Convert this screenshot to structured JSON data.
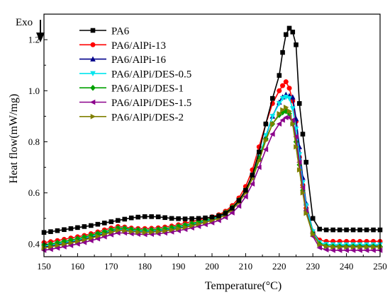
{
  "chart_data": {
    "type": "line",
    "title": "",
    "xlabel": "Temperature(°C)",
    "ylabel": "Heat flow(mW/mg)",
    "annotation": "Exo",
    "xlim": [
      150,
      250
    ],
    "ylim": [
      0.35,
      1.3
    ],
    "xticks": [
      "150",
      "160",
      "170",
      "180",
      "190",
      "200",
      "210",
      "220",
      "230",
      "240",
      "250"
    ],
    "yticks": [
      "0.4",
      "0.6",
      "0.8",
      "1.0",
      "1.2"
    ],
    "grid": false,
    "legend_position": "top-left",
    "x": [
      150,
      152,
      154,
      156,
      158,
      160,
      162,
      164,
      166,
      168,
      170,
      172,
      174,
      176,
      178,
      180,
      182,
      184,
      186,
      188,
      190,
      192,
      194,
      196,
      198,
      200,
      202,
      204,
      206,
      208,
      210,
      212,
      214,
      216,
      218,
      220,
      221,
      222,
      223,
      224,
      225,
      226,
      227,
      228,
      230,
      232,
      234,
      236,
      238,
      240,
      242,
      244,
      246,
      248,
      250
    ],
    "series": [
      {
        "name": "PA6",
        "color": "#000000",
        "marker": "square",
        "values": [
          0.445,
          0.448,
          0.452,
          0.456,
          0.46,
          0.464,
          0.468,
          0.472,
          0.477,
          0.482,
          0.487,
          0.492,
          0.497,
          0.502,
          0.505,
          0.507,
          0.507,
          0.506,
          0.503,
          0.5,
          0.499,
          0.498,
          0.499,
          0.5,
          0.502,
          0.505,
          0.51,
          0.52,
          0.54,
          0.57,
          0.61,
          0.67,
          0.76,
          0.87,
          0.97,
          1.06,
          1.15,
          1.22,
          1.245,
          1.23,
          1.18,
          0.95,
          0.83,
          0.72,
          0.5,
          0.458,
          0.455,
          0.455,
          0.455,
          0.455,
          0.455,
          0.455,
          0.455,
          0.455,
          0.455
        ]
      },
      {
        "name": "PA6/AlPi-13",
        "color": "#ff0000",
        "marker": "circle",
        "values": [
          0.405,
          0.409,
          0.413,
          0.418,
          0.423,
          0.428,
          0.433,
          0.44,
          0.447,
          0.455,
          0.462,
          0.468,
          0.466,
          0.462,
          0.46,
          0.46,
          0.461,
          0.463,
          0.466,
          0.47,
          0.475,
          0.481,
          0.487,
          0.494,
          0.5,
          0.506,
          0.514,
          0.528,
          0.55,
          0.58,
          0.625,
          0.69,
          0.78,
          0.87,
          0.95,
          1.0,
          1.02,
          1.035,
          1.01,
          0.96,
          0.88,
          0.74,
          0.63,
          0.54,
          0.445,
          0.415,
          0.41,
          0.41,
          0.41,
          0.41,
          0.41,
          0.41,
          0.41,
          0.41,
          0.41
        ]
      },
      {
        "name": "PA6/AlPi-16",
        "color": "#00008b",
        "marker": "triangle-up",
        "values": [
          0.388,
          0.392,
          0.397,
          0.402,
          0.407,
          0.413,
          0.42,
          0.427,
          0.434,
          0.442,
          0.45,
          0.457,
          0.456,
          0.452,
          0.45,
          0.449,
          0.45,
          0.452,
          0.455,
          0.459,
          0.464,
          0.469,
          0.475,
          0.482,
          0.489,
          0.496,
          0.505,
          0.518,
          0.538,
          0.565,
          0.605,
          0.66,
          0.735,
          0.82,
          0.9,
          0.955,
          0.975,
          0.985,
          0.98,
          0.975,
          0.89,
          0.78,
          0.66,
          0.56,
          0.45,
          0.405,
          0.398,
          0.396,
          0.395,
          0.395,
          0.395,
          0.395,
          0.395,
          0.395,
          0.395
        ]
      },
      {
        "name": "PA6/AlPi/DES-0.5",
        "color": "#00e5ee",
        "marker": "triangle-down",
        "values": [
          0.392,
          0.396,
          0.401,
          0.406,
          0.411,
          0.417,
          0.423,
          0.43,
          0.437,
          0.445,
          0.452,
          0.459,
          0.458,
          0.454,
          0.452,
          0.451,
          0.452,
          0.454,
          0.457,
          0.461,
          0.466,
          0.471,
          0.477,
          0.484,
          0.491,
          0.498,
          0.507,
          0.52,
          0.54,
          0.568,
          0.608,
          0.665,
          0.74,
          0.825,
          0.9,
          0.95,
          0.97,
          0.975,
          0.97,
          0.93,
          0.85,
          0.75,
          0.64,
          0.55,
          0.448,
          0.405,
          0.398,
          0.397,
          0.397,
          0.397,
          0.397,
          0.397,
          0.397,
          0.397,
          0.397
        ]
      },
      {
        "name": "PA6/AlPi/DES-1",
        "color": "#00a000",
        "marker": "diamond",
        "values": [
          0.396,
          0.4,
          0.405,
          0.41,
          0.415,
          0.421,
          0.427,
          0.434,
          0.441,
          0.448,
          0.455,
          0.462,
          0.461,
          0.457,
          0.455,
          0.454,
          0.455,
          0.457,
          0.46,
          0.464,
          0.469,
          0.474,
          0.48,
          0.487,
          0.494,
          0.501,
          0.51,
          0.523,
          0.543,
          0.571,
          0.61,
          0.665,
          0.735,
          0.81,
          0.87,
          0.905,
          0.915,
          0.92,
          0.91,
          0.87,
          0.8,
          0.71,
          0.61,
          0.53,
          0.44,
          0.4,
          0.392,
          0.39,
          0.39,
          0.39,
          0.39,
          0.39,
          0.39,
          0.39,
          0.39
        ]
      },
      {
        "name": "PA6/AlPi/DES-1.5",
        "color": "#8b008b",
        "marker": "triangle-left",
        "values": [
          0.375,
          0.379,
          0.384,
          0.389,
          0.394,
          0.4,
          0.406,
          0.413,
          0.42,
          0.428,
          0.436,
          0.443,
          0.443,
          0.44,
          0.438,
          0.437,
          0.438,
          0.44,
          0.443,
          0.447,
          0.452,
          0.457,
          0.463,
          0.469,
          0.476,
          0.483,
          0.492,
          0.504,
          0.522,
          0.548,
          0.585,
          0.635,
          0.7,
          0.77,
          0.83,
          0.87,
          0.885,
          0.895,
          0.895,
          0.885,
          0.82,
          0.72,
          0.62,
          0.53,
          0.43,
          0.385,
          0.377,
          0.375,
          0.375,
          0.375,
          0.375,
          0.375,
          0.375,
          0.375,
          0.375
        ]
      },
      {
        "name": "PA6/AlPi/DES-2",
        "color": "#808000",
        "marker": "triangle-right",
        "values": [
          0.385,
          0.389,
          0.394,
          0.399,
          0.404,
          0.41,
          0.416,
          0.423,
          0.43,
          0.438,
          0.446,
          0.453,
          0.452,
          0.448,
          0.446,
          0.445,
          0.446,
          0.448,
          0.451,
          0.455,
          0.46,
          0.465,
          0.471,
          0.478,
          0.485,
          0.492,
          0.501,
          0.514,
          0.534,
          0.562,
          0.6,
          0.655,
          0.725,
          0.805,
          0.87,
          0.91,
          0.925,
          0.935,
          0.92,
          0.87,
          0.78,
          0.69,
          0.6,
          0.52,
          0.438,
          0.398,
          0.39,
          0.388,
          0.388,
          0.388,
          0.388,
          0.388,
          0.388,
          0.388,
          0.388
        ]
      }
    ]
  }
}
